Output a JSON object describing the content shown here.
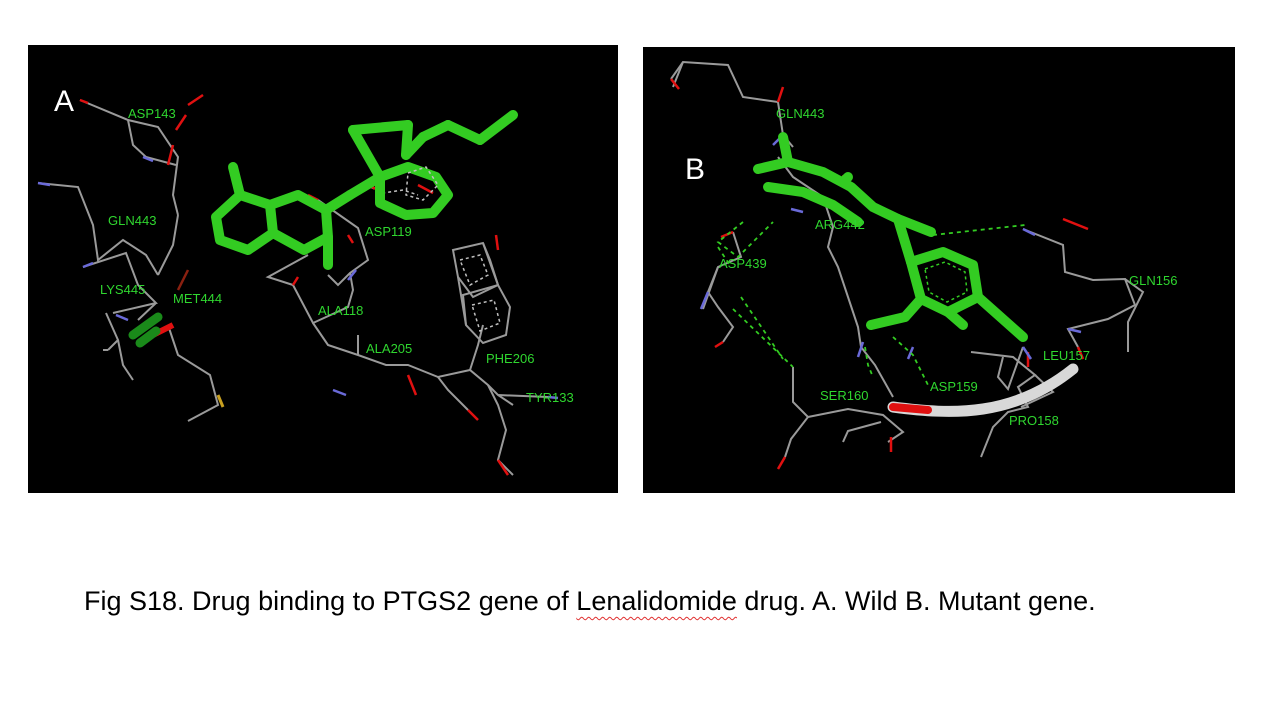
{
  "panels": [
    {
      "letter": "A",
      "residues": [
        "ASP143",
        "GLN443",
        "LYS445",
        "MET444",
        "ASP119",
        "ALA118",
        "ALA205",
        "PHE206",
        "TYR133"
      ]
    },
    {
      "letter": "B",
      "residues": [
        "GLN443",
        "ARG442",
        "ASP439",
        "GLN156",
        "LEU157",
        "ASP159",
        "SER160",
        "PRO158"
      ]
    }
  ],
  "caption": {
    "before": "Fig  S18. Drug binding  to PTGS2 gene of ",
    "drug": "Lenalidomide",
    "after": "  drug. A. Wild B. Mutant gene."
  },
  "colors": {
    "ligand": "#33cc22",
    "label": "#2fd62f",
    "bond": "#9a9a9a",
    "oxygen": "#e01010",
    "nitrogen": "#6a6ad8",
    "sulfur": "#c8a020"
  }
}
